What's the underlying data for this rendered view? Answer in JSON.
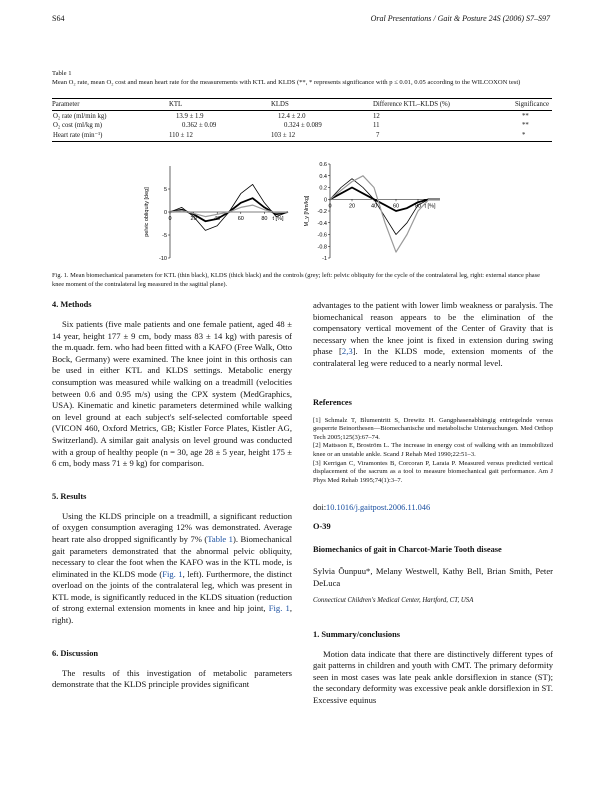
{
  "header": {
    "page": "S64",
    "journal": "Oral Presentations / Gait & Posture 24S (2006) S7–S97"
  },
  "table": {
    "label": "Table 1",
    "caption": "Mean O₂ rate, mean O₂ cost and mean heart rate for the measurements with KTL and KLDS (**, * represents significance with p ≤ 0.01, 0.05 according to the WILCOXON test)",
    "headers": [
      "Parameter",
      "KTL",
      "KLDS",
      "Difference KTL–KLDS (%)",
      "Significance"
    ],
    "rows": [
      [
        "O₂ rate (ml/min kg)",
        "13.9 ± 1.9",
        "12.4 ± 2.0",
        "12",
        "**"
      ],
      [
        "O₂ cost (ml/kg m)",
        "0.362 ± 0.09",
        "0.324 ± 0.089",
        "11",
        "**"
      ],
      [
        "Heart rate (min⁻¹)",
        "110 ± 12",
        "103 ± 12",
        "7",
        "*"
      ]
    ]
  },
  "chart_data": [
    {
      "type": "line",
      "ylabel": "pelvic obliquity [deg]",
      "xlabel": "t [%]",
      "x_ticks": [
        "0",
        "20",
        "40",
        "60",
        "80"
      ],
      "y_ticks": [
        "5",
        "0",
        "-5",
        "-10"
      ],
      "ylim": [
        -10,
        10
      ],
      "xlim": [
        0,
        100
      ],
      "series": [
        {
          "x": [
            0,
            10,
            20,
            30,
            40,
            50,
            60,
            70,
            80,
            90,
            100
          ],
          "y": [
            0,
            1,
            -1,
            -4,
            -3,
            0,
            4,
            6,
            2,
            -1,
            0
          ]
        },
        {
          "x": [
            0,
            10,
            20,
            30,
            40,
            50,
            60,
            70,
            80,
            90,
            100
          ],
          "y": [
            0,
            0.5,
            -0.5,
            -2,
            -1.5,
            0,
            2,
            3,
            1,
            -0.5,
            0
          ]
        },
        {
          "x": [
            0,
            10,
            20,
            30,
            40,
            50,
            60,
            70,
            80,
            90,
            100
          ],
          "y": [
            0,
            0.3,
            -0.3,
            -1,
            -0.5,
            0,
            1,
            1.5,
            0.5,
            -0.2,
            0
          ]
        }
      ]
    },
    {
      "type": "line",
      "ylabel": "M_y [Nm/kg]",
      "xlabel": "t [%]",
      "x_ticks": [
        "0",
        "20",
        "40",
        "60",
        "80"
      ],
      "y_ticks": [
        "0.6",
        "0.4",
        "0.2",
        "0",
        "-0.2",
        "-0.4",
        "-0.6",
        "-0.8",
        "-1"
      ],
      "ylim": [
        -1,
        0.6
      ],
      "xlim": [
        0,
        100
      ],
      "series": [
        {
          "x": [
            0,
            10,
            20,
            30,
            40,
            50,
            60,
            70,
            80,
            90,
            100
          ],
          "y": [
            0,
            0.2,
            0.35,
            0.2,
            0,
            -0.3,
            -0.6,
            -0.4,
            -0.1,
            0,
            0
          ]
        },
        {
          "x": [
            0,
            10,
            20,
            30,
            40,
            50,
            60,
            70,
            80,
            90,
            100
          ],
          "y": [
            0,
            0.1,
            0.2,
            0.1,
            0,
            -0.1,
            -0.2,
            -0.15,
            -0.05,
            0,
            0
          ]
        },
        {
          "x": [
            0,
            10,
            20,
            30,
            40,
            50,
            60,
            70,
            80,
            90,
            100
          ],
          "y": [
            0,
            0.15,
            0.3,
            0.4,
            0.2,
            -0.4,
            -0.9,
            -0.6,
            -0.2,
            0,
            0
          ]
        }
      ]
    }
  ],
  "figure": {
    "caption": "Fig. 1.  Mean biomechanical parameters for KTL (thin black), KLDS (thick black) and the controls (grey; left: pelvic obliquity for the cycle of the contralateral leg, right: external stance phase knee moment of the contralateral leg measured in the sagittal plane)."
  },
  "left": {
    "methods_title": "4. Methods",
    "methods_p1": "Six patients (five male patients and one female patient, aged 48 ± 14 year, height 177 ± 9 cm, body mass 83 ± 14 kg) with paresis of the m.quadr. fem. who had been fitted with a KAFO (Free Walk, Otto Bock, Germany) were examined. The knee joint in this orthosis can be used in either KTL and KLDS settings. Metabolic energy consumption was measured while walking on a treadmill (velocities between 0.6 and 0.95 m/s) using the CPX system (MedGraphics, USA). Kinematic and kinetic parameters determined while walking on level ground at each subject's self-selected comfortable speed (VICON 460, Oxford Metrics, GB; Kistler Force Plates, Kistler AG, Switzerland). A similar gait analysis on level ground was conducted with a group of healthy people (n = 30, age 28 ± 5 year, height 175 ± 6 cm, body mass 71 ± 9 kg) for comparison.",
    "results_title": "5. Results",
    "results_p1_a": "Using the KLDS principle on a treadmill, a significant reduction of oxygen consumption averaging 12% was demonstrated. Average heart rate also dropped significantly by 7% (",
    "results_link1": "Table 1",
    "results_p1_b": "). Biomechanical gait parameters demonstrated that the abnormal pelvic obliquity, necessary to clear the foot when the KAFO was in the KTL mode, is eliminated in the KLDS mode (",
    "results_link2": "Fig. 1",
    "results_p1_c": ", left). Furthermore, the distinct overload on the joints of the contralateral leg, which was present in KTL mode, is significantly reduced in the KLDS situation (reduction of strong external extension moments in knee and hip joint, ",
    "results_link3": "Fig. 1",
    "results_p1_d": ", right).",
    "discussion_title": "6. Discussion",
    "discussion_p1": "The results of this investigation of metabolic parameters demonstrate that the KLDS principle provides significant"
  },
  "right": {
    "cont_p_a": "advantages to the patient with lower limb weakness or paralysis. The biomechanical reason appears to be the elimination of the compensatory vertical movement of the Center of Gravity that is necessary when the knee joint is fixed in extension during swing phase [",
    "cont_link": "2,3",
    "cont_p_b": "]. In the KLDS mode, extension moments of the contralateral leg were reduced to a nearly normal level.",
    "references_title": "References",
    "references": [
      "[1]  Schmalz T, Blumentritt S, Drewitz H. Gangphasenabhängig entriegelnde versus gesperrte Beinorthesen—Biomechanische und metabolische Untersuchungen. Med Orthop Tech 2005;125(3):67–74.",
      "[2]  Mattsson E, Broström L. The increase in energy cost of walking with an immobilized knee or an unstable ankle. Scand J Rehab Med 1990;22:51–3.",
      "[3]  Kerrigan C, Viramontes B, Corcoran P, Laraia P. Measured versus predicted vertical displacement of the sacrum as a tool to measure biomechanical gait performance. Am J Phys Med Rehab 1995;74(1):3–7."
    ],
    "doi_prefix": "doi:",
    "doi_link": "10.1016/j.gaitpost.2006.11.046",
    "abstract_id": "O-39",
    "abstract_title": "Biomechanics of gait in Charcot-Marie Tooth disease",
    "authors": "Sylvia Õunpuu*, Melany Westwell, Kathy Bell, Brian Smith, Peter DeLuca",
    "affiliation": "Connecticut Children's Medical Center, Hartford, CT, USA",
    "summary_title": "1. Summary/conclusions",
    "summary_p1": "Motion data indicate that there are distinctively different types of gait patterns in children and youth with CMT. The primary deformity seen in most cases was late peak ankle dorsiflexion in stance (ST); the secondary deformity was excessive peak ankle dorsiflexion in ST. Excessive equinus"
  }
}
